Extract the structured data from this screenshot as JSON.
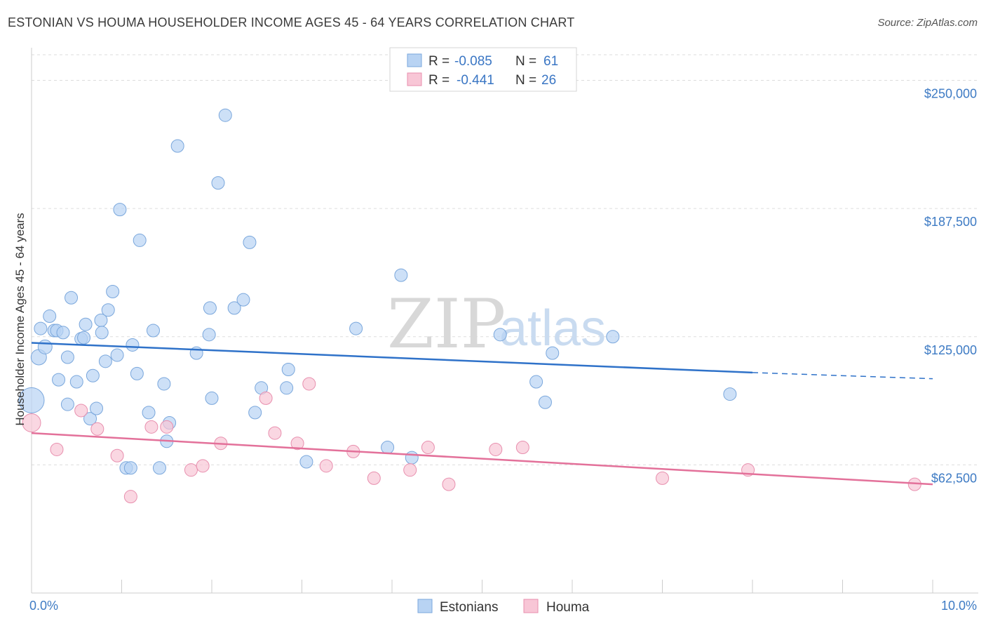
{
  "title": "ESTONIAN VS HOUMA HOUSEHOLDER INCOME AGES 45 - 64 YEARS CORRELATION CHART",
  "source": "Source: ZipAtlas.com",
  "watermark": {
    "zip": "ZIP",
    "atlas": "atlas"
  },
  "colors": {
    "estonians_fill": "#b8d3f3",
    "estonians_stroke": "#7aa7dc",
    "estonians_line": "#2f72c9",
    "houma_fill": "#f8c6d6",
    "houma_stroke": "#e88fae",
    "houma_line": "#e3719a",
    "grid": "#dddddd",
    "tick_text": "#3e7bc4"
  },
  "legend": {
    "rows": [
      {
        "r_label": "R =",
        "r_value": "-0.085",
        "n_label": "N =",
        "n_value": "61"
      },
      {
        "r_label": "R =",
        "r_value": "-0.441",
        "n_label": "N =",
        "n_value": "26"
      }
    ]
  },
  "chart_data": {
    "type": "scatter",
    "title": "ESTONIAN VS HOUMA HOUSEHOLDER INCOME AGES 45 - 64 YEARS CORRELATION CHART",
    "xlabel": "",
    "ylabel": "Householder Income Ages 45 - 64 years",
    "xlim": [
      0,
      10
    ],
    "ylim": [
      0,
      262500
    ],
    "x_tick_labels": [
      "0.0%",
      "10.0%"
    ],
    "y_ticks": [
      62500,
      125000,
      187500,
      250000
    ],
    "y_tick_labels": [
      "$62,500",
      "$125,000",
      "$187,500",
      "$250,000"
    ],
    "legend_position": "top-center",
    "series": [
      {
        "name": "Estonians",
        "r": -0.085,
        "n": 61,
        "trend": {
          "x_start": 0.0,
          "y_start": 122000,
          "x_solid_end": 8.0,
          "y_solid_end": 107500,
          "x_end": 10.0,
          "y_end": 104500
        },
        "points": [
          [
            0.0,
            94000,
            18
          ],
          [
            0.08,
            115000,
            11
          ],
          [
            0.15,
            120000,
            10
          ],
          [
            0.1,
            129000,
            9
          ],
          [
            0.2,
            135000,
            9
          ],
          [
            0.25,
            128000,
            9
          ],
          [
            0.28,
            128000,
            9
          ],
          [
            0.3,
            104000,
            9
          ],
          [
            0.35,
            127000,
            9
          ],
          [
            0.4,
            92000,
            9
          ],
          [
            0.4,
            115000,
            9
          ],
          [
            0.44,
            144000,
            9
          ],
          [
            0.5,
            103000,
            9
          ],
          [
            0.55,
            124000,
            9
          ],
          [
            0.58,
            124500,
            9
          ],
          [
            0.6,
            131000,
            9
          ],
          [
            0.65,
            85000,
            9
          ],
          [
            0.68,
            106000,
            9
          ],
          [
            0.72,
            90000,
            9
          ],
          [
            0.77,
            133000,
            9
          ],
          [
            0.78,
            127000,
            9
          ],
          [
            0.82,
            113000,
            9
          ],
          [
            0.85,
            138000,
            9
          ],
          [
            0.9,
            147000,
            9
          ],
          [
            0.95,
            116000,
            9
          ],
          [
            0.98,
            187000,
            9
          ],
          [
            1.05,
            61000,
            9
          ],
          [
            1.1,
            61000,
            9
          ],
          [
            1.12,
            121000,
            9
          ],
          [
            1.17,
            107000,
            9
          ],
          [
            1.2,
            172000,
            9
          ],
          [
            1.3,
            88000,
            9
          ],
          [
            1.35,
            128000,
            9
          ],
          [
            1.42,
            61000,
            9
          ],
          [
            1.47,
            102000,
            9
          ],
          [
            1.5,
            74000,
            9
          ],
          [
            1.53,
            83000,
            9
          ],
          [
            1.62,
            218000,
            9
          ],
          [
            1.83,
            117000,
            9
          ],
          [
            1.97,
            126000,
            9
          ],
          [
            1.98,
            139000,
            9
          ],
          [
            2.0,
            95000,
            9
          ],
          [
            2.07,
            200000,
            9
          ],
          [
            2.15,
            233000,
            9
          ],
          [
            2.25,
            139000,
            9
          ],
          [
            2.35,
            143000,
            9
          ],
          [
            2.42,
            171000,
            9
          ],
          [
            2.48,
            88000,
            9
          ],
          [
            2.55,
            100000,
            9
          ],
          [
            2.83,
            100000,
            9
          ],
          [
            2.85,
            109000,
            9
          ],
          [
            3.05,
            64000,
            9
          ],
          [
            3.6,
            129000,
            9
          ],
          [
            3.95,
            71000,
            9
          ],
          [
            4.1,
            155000,
            9
          ],
          [
            4.22,
            66000,
            9
          ],
          [
            5.2,
            126000,
            9
          ],
          [
            5.6,
            103000,
            9
          ],
          [
            5.7,
            93000,
            9
          ],
          [
            5.78,
            117000,
            9
          ],
          [
            6.45,
            125000,
            9
          ],
          [
            7.75,
            97000,
            9
          ]
        ]
      },
      {
        "name": "Houma",
        "r": -0.441,
        "n": 26,
        "trend": {
          "x_start": 0.0,
          "y_start": 78000,
          "x_end": 10.0,
          "y_end": 53000
        },
        "points": [
          [
            0.0,
            83000,
            13
          ],
          [
            0.28,
            70000,
            9
          ],
          [
            0.55,
            89000,
            9
          ],
          [
            0.73,
            80000,
            9
          ],
          [
            0.95,
            67000,
            9
          ],
          [
            1.1,
            47000,
            9
          ],
          [
            1.33,
            81000,
            9
          ],
          [
            1.5,
            81000,
            9
          ],
          [
            1.77,
            60000,
            9
          ],
          [
            1.9,
            62000,
            9
          ],
          [
            2.1,
            73000,
            9
          ],
          [
            2.6,
            95000,
            9
          ],
          [
            2.7,
            78000,
            9
          ],
          [
            2.95,
            73000,
            9
          ],
          [
            3.08,
            102000,
            9
          ],
          [
            3.27,
            62000,
            9
          ],
          [
            3.57,
            69000,
            9
          ],
          [
            3.8,
            56000,
            9
          ],
          [
            4.2,
            60000,
            9
          ],
          [
            4.4,
            71000,
            9
          ],
          [
            4.63,
            53000,
            9
          ],
          [
            5.15,
            70000,
            9
          ],
          [
            5.45,
            71000,
            9
          ],
          [
            7.0,
            56000,
            9
          ],
          [
            7.95,
            60000,
            9
          ],
          [
            9.8,
            53000,
            9
          ]
        ]
      }
    ]
  }
}
